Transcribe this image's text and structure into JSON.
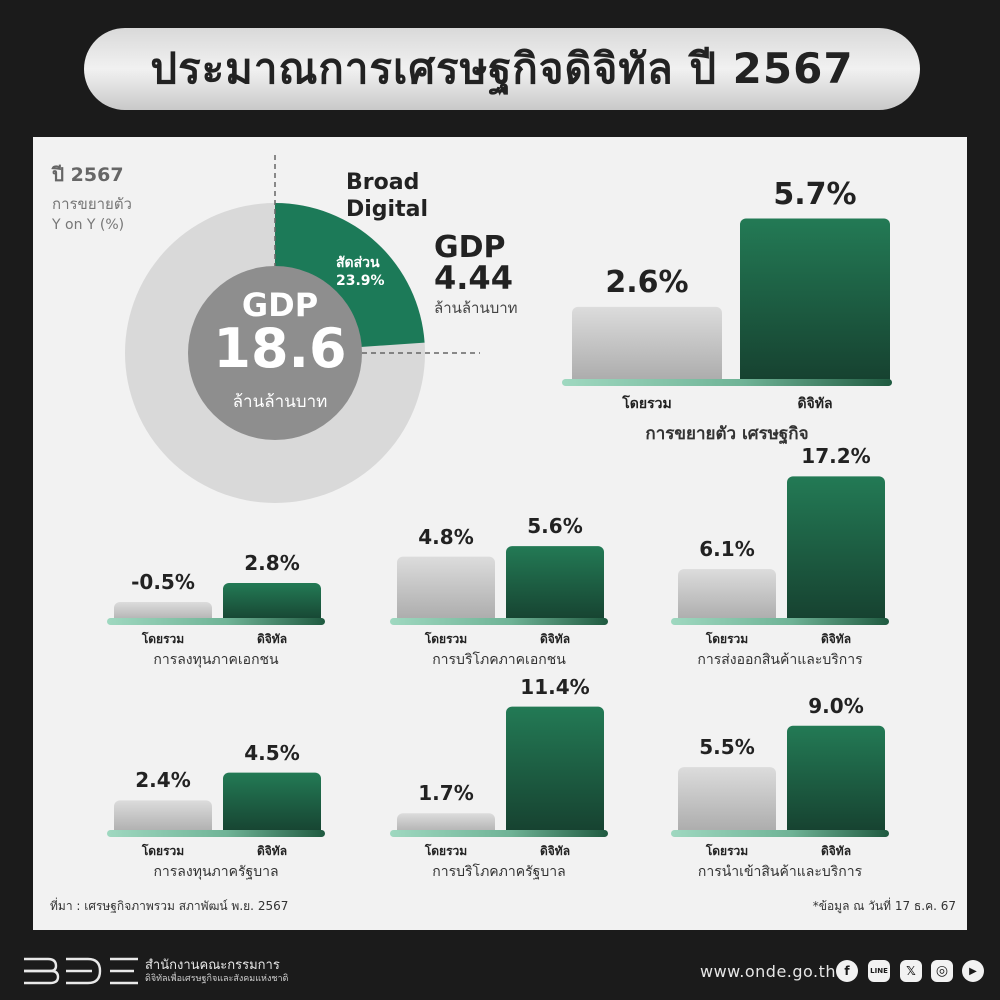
{
  "title": "ประมาณการเศรษฐกิจดิจิทัล ปี 2567",
  "donut": {
    "year_label": "ปี 2567",
    "subtitle_line1": "การขยายตัว",
    "subtitle_line2": "Y on Y (%)",
    "center_gdp": "GDP",
    "center_value": "18.6",
    "center_unit": "ล้านล้านบาท",
    "slice_title_line1": "Broad",
    "slice_title_line2": "Digital",
    "slice_share_label": "สัดส่วน",
    "slice_share_value": "23.9%",
    "slice_gdp": "GDP",
    "slice_value": "4.44",
    "slice_unit": "ล้านล้านบาท"
  },
  "chart_data": [
    {
      "type": "pie",
      "categories": [
        "Broad Digital",
        "Other"
      ],
      "values": [
        23.9,
        76.1
      ],
      "total_gdp_trillion_baht": 18.6,
      "digital_gdp_trillion_baht": 4.44
    },
    {
      "type": "bar",
      "title": "การขยายตัว เศรษฐกิจ",
      "categories": [
        "โดยรวม",
        "ดิจิทัล"
      ],
      "values": [
        2.6,
        5.7
      ],
      "labels": [
        "2.6%",
        "5.7%"
      ]
    },
    {
      "type": "bar",
      "title": "การลงทุนภาคเอกชน",
      "categories": [
        "โดยรวม",
        "ดิจิทัล"
      ],
      "values": [
        -0.5,
        2.8
      ],
      "labels": [
        "-0.5%",
        "2.8%"
      ]
    },
    {
      "type": "bar",
      "title": "การบริโภคภาคเอกชน",
      "categories": [
        "โดยรวม",
        "ดิจิทัล"
      ],
      "values": [
        4.8,
        5.6
      ],
      "labels": [
        "4.8%",
        "5.6%"
      ]
    },
    {
      "type": "bar",
      "title": "การส่งออกสินค้าและบริการ",
      "categories": [
        "โดยรวม",
        "ดิจิทัล"
      ],
      "values": [
        6.1,
        17.2
      ],
      "labels": [
        "6.1%",
        "17.2%"
      ]
    },
    {
      "type": "bar",
      "title": "การลงทุนภาครัฐบาล",
      "categories": [
        "โดยรวม",
        "ดิจิทัล"
      ],
      "values": [
        2.4,
        4.5
      ],
      "labels": [
        "2.4%",
        "4.5%"
      ]
    },
    {
      "type": "bar",
      "title": "การบริโภคภาครัฐบาล",
      "categories": [
        "โดยรวม",
        "ดิจิทัล"
      ],
      "values": [
        1.7,
        11.4
      ],
      "labels": [
        "1.7%",
        "11.4%"
      ]
    },
    {
      "type": "bar",
      "title": "การนำเข้าสินค้าและบริการ",
      "categories": [
        "โดยรวม",
        "ดิจิทัล"
      ],
      "values": [
        5.5,
        9.0
      ],
      "labels": [
        "5.5%",
        "9.0%"
      ]
    }
  ],
  "colors": {
    "digital": "#1f6b4c",
    "overall": "#c8c8c8",
    "baseline": "#8ecdb4",
    "donut_bg": "#d9d9d9",
    "donut_center": "#8e8e8e",
    "slice": "#1c7a58"
  },
  "source": "ที่มา : เศรษฐกิจภาพรวม สภาพัฒน์ พ.ย. 2567",
  "data_note": "*ข้อมูล ณ วันที่ 17 ธ.ค. 67",
  "footer": {
    "logo_text": "BDE",
    "org_line1": "สำนักงานคณะกรรมการ",
    "org_line2": "ดิจิทัลเพื่อเศรษฐกิจและสังคมแห่งชาติ",
    "website": "www.onde.go.th",
    "social_icons": [
      "facebook-icon",
      "line-icon",
      "x-icon",
      "instagram-icon",
      "youtube-icon"
    ],
    "social_glyphs": [
      "f",
      "LINE",
      "𝕏",
      "◎",
      "▶"
    ]
  }
}
